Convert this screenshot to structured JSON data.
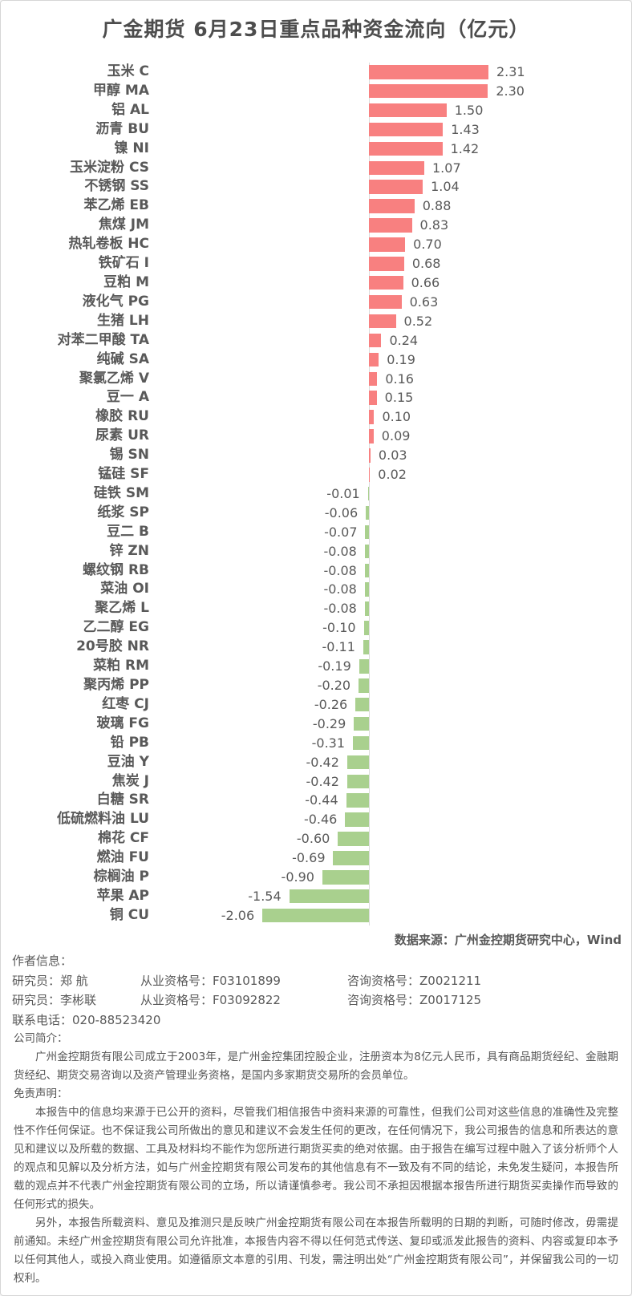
{
  "title": "广金期货 6月23日重点品种资金流向（亿元）",
  "chart_data": {
    "type": "bar",
    "orientation": "horizontal",
    "title": "广金期货 6月23日重点品种资金流向（亿元）",
    "unit": "亿元",
    "value_axis_range": [
      -2.3,
      2.6
    ],
    "grid": false,
    "legend": "none",
    "positive_color": "#f88080",
    "negative_color": "#a9d08e",
    "axis_color": "#dcdcdc",
    "categories": [
      "玉米 C",
      "甲醇 MA",
      "铝 AL",
      "沥青 BU",
      "镍 NI",
      "玉米淀粉 CS",
      "不锈钢 SS",
      "苯乙烯 EB",
      "焦煤 JM",
      "热轧卷板 HC",
      "铁矿石 I",
      "豆粕 M",
      "液化气 PG",
      "生猪 LH",
      "对苯二甲酸 TA",
      "纯碱 SA",
      "聚氯乙烯 V",
      "豆一 A",
      "橡胶 RU",
      "尿素 UR",
      "锡 SN",
      "锰硅 SF",
      "硅铁 SM",
      "纸浆 SP",
      "豆二 B",
      "锌 ZN",
      "螺纹钢 RB",
      "菜油 OI",
      "聚乙烯 L",
      "乙二醇 EG",
      "20号胶 NR",
      "菜粕 RM",
      "聚丙烯 PP",
      "红枣 CJ",
      "玻璃 FG",
      "铅 PB",
      "豆油 Y",
      "焦炭 J",
      "白糖 SR",
      "低硫燃料油 LU",
      "棉花 CF",
      "燃油 FU",
      "棕榈油 P",
      "苹果 AP",
      "铜 CU"
    ],
    "values": [
      2.31,
      2.3,
      1.5,
      1.43,
      1.42,
      1.07,
      1.04,
      0.88,
      0.83,
      0.7,
      0.68,
      0.66,
      0.63,
      0.52,
      0.24,
      0.19,
      0.16,
      0.15,
      0.1,
      0.09,
      0.03,
      0.02,
      -0.01,
      -0.06,
      -0.07,
      -0.08,
      -0.08,
      -0.08,
      -0.08,
      -0.1,
      -0.11,
      -0.19,
      -0.2,
      -0.26,
      -0.29,
      -0.31,
      -0.42,
      -0.42,
      -0.44,
      -0.46,
      -0.6,
      -0.69,
      -0.9,
      -1.54,
      -2.06
    ]
  },
  "footer": {
    "source": "数据来源：广州金控期货研究中心，Wind",
    "author_heading": "作者信息：",
    "researchers": [
      {
        "role_label": "研究员：",
        "name": "郑 航",
        "practice": "从业资格号：F03101899",
        "advisory": "咨询资格号：Z0021211"
      },
      {
        "role_label": "研究员：",
        "name": "李彬联",
        "practice": "从业资格号：F03092822",
        "advisory": "咨询资格号：Z0017125"
      }
    ],
    "phone": "联系电话：020-88523420",
    "company_heading": "公司简介：",
    "company_intro": "广州金控期货有限公司成立于2003年，是广州金控集团控股企业，注册资本为8亿元人民币，具有商品期货经纪、金融期货经纪、期货交易咨询以及资产管理业务资格，是国内多家期货交易所的会员单位。",
    "disclaimer_heading": "免责声明：",
    "disclaimer_paragraphs": [
      "本报告中的信息均来源于已公开的资料，尽管我们相信报告中资料来源的可靠性，但我们公司对这些信息的准确性及完整性不作任何保证。也不保证我公司所做出的意见和建议不会发生任何的更改，在任何情况下，我公司报告的信息和所表达的意见和建议以及所载的数据、工具及材料均不能作为您所进行期货买卖的绝对依据。由于报告在编写过程中融入了该分析师个人的观点和见解以及分析方法，如与广州金控期货有限公司发布的其他信息有不一致及有不同的结论，未免发生疑问，本报告所载的观点并不代表广州金控期货有限公司的立场，所以请谨慎参考。我公司不承担因根据本报告所进行期货买卖操作而导致的任何形式的损失。",
      "另外，本报告所载资料、意见及推测只是反映广州金控期货有限公司在本报告所载明的日期的判断，可随时修改，毋需提前通知。未经广州金控期货有限公司允许批准，本报告内容不得以任何范式传送、复印或派发此报告的资料、内容或复印本予以任何其他人，或投入商业使用。如遵循原文本意的引用、刊发，需注明出处“广州金控期货有限公司”，并保留我公司的一切权利。"
    ]
  }
}
